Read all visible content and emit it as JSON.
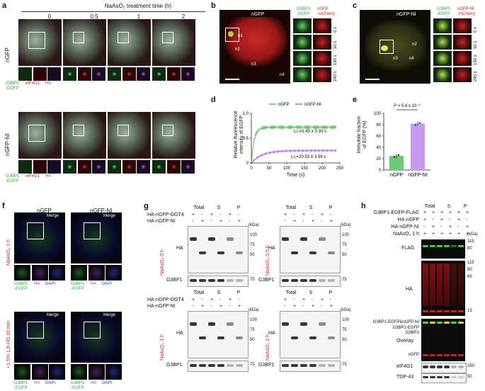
{
  "panels": {
    "a": {
      "letter": "a",
      "treatment_title": "NaAsO₂ treatment time (h)",
      "times": [
        "0",
        "0.5",
        "1",
        "2"
      ],
      "rows": [
        {
          "name": "nGFP",
          "legend": [
            "G3BP1\n-EGFP",
            "eIF4G1",
            "HA"
          ]
        },
        {
          "name": "nGFP-NI",
          "legend": [
            "G3BP1\n-EGFP",
            "eIF4G1",
            "HA"
          ]
        }
      ]
    },
    "b": {
      "letter": "b",
      "title": "nGFP",
      "labels": [
        "n1",
        "n2",
        "n3",
        "n4"
      ],
      "col1": "G3BP1\n-EGFP",
      "col2": "nGFP\n-mCherry",
      "times": [
        "0 s",
        "50 s",
        "150 s",
        "240 s"
      ]
    },
    "c": {
      "letter": "c",
      "title": "nGFP-NI",
      "labels": [
        "n1",
        "n2",
        "n3",
        "n4"
      ],
      "col1": "G3BP1\n-EGFP",
      "col2": "nGFP-NI\n-mCherry",
      "times": [
        "0 s",
        "50 s",
        "150 s",
        "240 s"
      ]
    },
    "d": {
      "letter": "d",
      "ylabel": "Relative fluorescence\nintensity of EGFP",
      "xlabel": "Time (s)",
      "legend": [
        "nGFP",
        "nGFP-NI"
      ],
      "ann1": "t₁/₂=5.45 ± 0.39 s",
      "ann2": "t₁/₂=20.53 ± 3.59 s",
      "xticks": [
        "0",
        "50",
        "100",
        "150",
        "200",
        "250"
      ],
      "yticks": [
        "0",
        "0.5",
        "1.0"
      ]
    },
    "e": {
      "letter": "e",
      "ylabel": "Immobile fraction\nof EGFP (%)",
      "pval": "P = 5.4 x 10⁻⁶",
      "yticks": [
        "0",
        "20",
        "40",
        "60",
        "80",
        "100"
      ],
      "bars": [
        "nGFP",
        "nGFP-NI"
      ]
    },
    "f": {
      "letter": "f",
      "cols": [
        "nGFP",
        "nGFP-NI"
      ],
      "merge": "Merge",
      "rowlabels": [
        "NaAsO₂ 1 h",
        "+1.5% 1,6-HD 10 min"
      ],
      "legend": [
        "G3BP1\n-EGFP",
        "HA",
        "DAPI"
      ]
    },
    "g": {
      "letter": "g",
      "header": [
        "Total",
        "S",
        "P"
      ],
      "rows": [
        "HA-nGFP-OGT4",
        "HA-nGFP-NI"
      ],
      "signs1": [
        "+",
        "-",
        "+",
        "-",
        "+",
        "-"
      ],
      "signs2": [
        "-",
        "+",
        "-",
        "+",
        "-",
        "+"
      ],
      "blots": [
        "NaAsO₂ 0 h",
        "NaAsO₂ 0.5 h",
        "NaAsO₂ 1 h",
        "NaAsO₂ 2 h"
      ],
      "ha": "HA",
      "g3bp1": "G3BP1",
      "kda": "(kDa)",
      "mw": [
        "100",
        "75",
        "50"
      ],
      "mw2": "75"
    },
    "h": {
      "letter": "h",
      "header": [
        "Total",
        "S",
        "P"
      ],
      "rows": [
        "G3BP1-EGFP-FLAG",
        "HA-nGFP",
        "HA-nGFP-NI",
        "NaAsO₂ 1 h"
      ],
      "signs": [
        [
          "+",
          "+",
          "+",
          "+",
          "+",
          "+"
        ],
        [
          "+",
          "-",
          "+",
          "-",
          "+",
          "-"
        ],
        [
          "-",
          "+",
          "-",
          "+",
          "-",
          "+"
        ],
        [
          "+",
          "+",
          "+",
          "+",
          "+",
          "+"
        ]
      ],
      "kda": "(kDa)",
      "blots": [
        "FLAG",
        "HA",
        "Overlay",
        "eIF4G1",
        "TDP-43"
      ],
      "mw_flag": [
        "115",
        "80"
      ],
      "mw_ha": [
        "115",
        "80",
        "65",
        "15"
      ],
      "mw_eif": "250",
      "mw_tdp": "50",
      "overlay_labels": [
        "G3BP1-EGFP&nGFP-NI",
        "G3BP1-EGFP",
        "G3BP1",
        "nGFP"
      ]
    }
  }
}
